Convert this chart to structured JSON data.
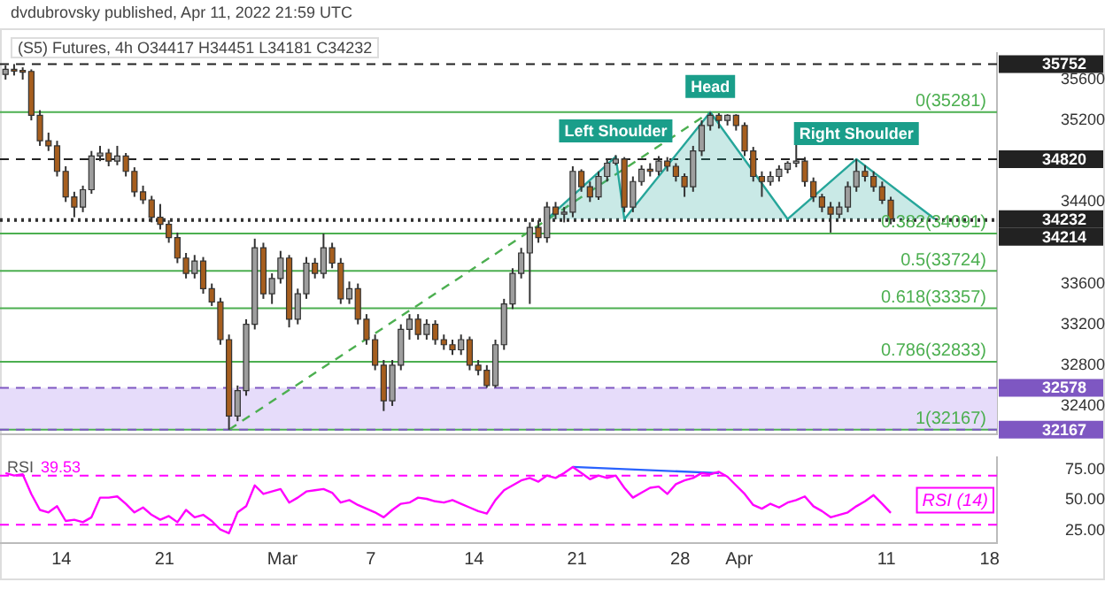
{
  "chart_data": [
    {
      "type": "candlestick",
      "title": "dvdubrovsky published, Apr 11, 2022 21:59 UTC",
      "subtitle": "(S5) Futures, 4h  O34417  H34451  L34181  C34232",
      "x": [
        "2022-02-10T05:00",
        "2022-02-10T19:00",
        "2022-02-11T09:00",
        "2022-02-11T23:00",
        "2022-02-12T13:00",
        "2022-02-13T03:00",
        "2022-02-13T17:00",
        "2022-02-14T07:00",
        "2022-02-14T21:00",
        "2022-02-15T11:00",
        "2022-02-16T01:00",
        "2022-02-16T15:00",
        "2022-02-17T05:00",
        "2022-02-17T19:00",
        "2022-02-18T09:00",
        "2022-02-18T23:00",
        "2022-02-19T13:00",
        "2022-02-20T03:00",
        "2022-02-20T17:00",
        "2022-02-21T07:00",
        "2022-02-21T21:00",
        "2022-02-22T11:00",
        "2022-02-23T01:00",
        "2022-02-23T15:00",
        "2022-02-24T05:00",
        "2022-02-24T19:00",
        "2022-02-25T09:00",
        "2022-02-25T23:00",
        "2022-02-26T13:00",
        "2022-02-27T03:00",
        "2022-02-27T17:00",
        "2022-02-28T07:00",
        "2022-02-28T21:00",
        "2022-03-01T11:00",
        "2022-03-02T01:00",
        "2022-03-02T15:00",
        "2022-03-03T05:00",
        "2022-03-03T19:00",
        "2022-03-04T09:00",
        "2022-03-04T23:00",
        "2022-03-05T13:00",
        "2022-03-06T03:00",
        "2022-03-06T17:00",
        "2022-03-07T07:00",
        "2022-03-07T21:00",
        "2022-03-08T11:00",
        "2022-03-09T01:00",
        "2022-03-09T15:00",
        "2022-03-10T05:00",
        "2022-03-10T19:00",
        "2022-03-11T09:00",
        "2022-03-11T23:00",
        "2022-03-12T13:00",
        "2022-03-13T03:00",
        "2022-03-13T17:00",
        "2022-03-14T07:00",
        "2022-03-14T21:00",
        "2022-03-15T11:00",
        "2022-03-16T01:00",
        "2022-03-16T15:00",
        "2022-03-17T05:00",
        "2022-03-17T19:00",
        "2022-03-18T09:00",
        "2022-03-18T23:00",
        "2022-03-19T13:00",
        "2022-03-20T03:00",
        "2022-03-20T17:00",
        "2022-03-21T07:00",
        "2022-03-21T21:00",
        "2022-03-22T11:00",
        "2022-03-23T01:00",
        "2022-03-23T15:00",
        "2022-03-24T05:00",
        "2022-03-24T19:00",
        "2022-03-25T09:00",
        "2022-03-25T23:00",
        "2022-03-26T13:00",
        "2022-03-27T03:00",
        "2022-03-27T17:00",
        "2022-03-28T07:00",
        "2022-03-28T21:00",
        "2022-03-29T11:00",
        "2022-03-30T01:00",
        "2022-03-30T15:00",
        "2022-03-31T05:00",
        "2022-03-31T19:00",
        "2022-04-01T09:00",
        "2022-04-01T23:00",
        "2022-04-02T13:00",
        "2022-04-03T03:00",
        "2022-04-03T17:00",
        "2022-04-04T07:00",
        "2022-04-04T21:00",
        "2022-04-05T11:00",
        "2022-04-06T01:00",
        "2022-04-06T15:00",
        "2022-04-07T05:00",
        "2022-04-07T19:00",
        "2022-04-08T09:00",
        "2022-04-08T23:00",
        "2022-04-09T13:00",
        "2022-04-10T03:00",
        "2022-04-10T17:00",
        "2022-04-11T07:00"
      ],
      "ohlc": [
        [
          35650,
          35740,
          35600,
          35700
        ],
        [
          35700,
          35752,
          35640,
          35690
        ],
        [
          35690,
          35720,
          35600,
          35680
        ],
        [
          35680,
          35700,
          35200,
          35250
        ],
        [
          35250,
          35300,
          34950,
          35000
        ],
        [
          35000,
          35080,
          34900,
          34950
        ],
        [
          34950,
          35000,
          34650,
          34700
        ],
        [
          34700,
          34750,
          34400,
          34450
        ],
        [
          34450,
          34500,
          34250,
          34350
        ],
        [
          34350,
          34560,
          34300,
          34520
        ],
        [
          34520,
          34900,
          34480,
          34850
        ],
        [
          34850,
          34950,
          34800,
          34880
        ],
        [
          34880,
          34920,
          34750,
          34800
        ],
        [
          34800,
          34950,
          34760,
          34850
        ],
        [
          34850,
          34880,
          34650,
          34700
        ],
        [
          34700,
          34740,
          34450,
          34500
        ],
        [
          34500,
          34560,
          34380,
          34420
        ],
        [
          34420,
          34460,
          34200,
          34250
        ],
        [
          34250,
          34380,
          34130,
          34180
        ],
        [
          34180,
          34220,
          34000,
          34050
        ],
        [
          34050,
          34100,
          33800,
          33850
        ],
        [
          33850,
          33900,
          33650,
          33700
        ],
        [
          33700,
          33880,
          33650,
          33820
        ],
        [
          33820,
          33860,
          33500,
          33550
        ],
        [
          33550,
          33600,
          33380,
          33420
        ],
        [
          33420,
          33460,
          33000,
          33050
        ],
        [
          33050,
          33100,
          32167,
          32300
        ],
        [
          32300,
          32600,
          32250,
          32550
        ],
        [
          32550,
          33250,
          32500,
          33200
        ],
        [
          33200,
          34040,
          33150,
          33950
        ],
        [
          33950,
          34000,
          33450,
          33500
        ],
        [
          33500,
          33700,
          33400,
          33650
        ],
        [
          33650,
          33920,
          33600,
          33850
        ],
        [
          33850,
          33880,
          33170,
          33250
        ],
        [
          33250,
          33550,
          33200,
          33500
        ],
        [
          33500,
          33860,
          33450,
          33800
        ],
        [
          33800,
          33850,
          33650,
          33700
        ],
        [
          33700,
          34090,
          33650,
          33950
        ],
        [
          33950,
          34000,
          33750,
          33800
        ],
        [
          33800,
          33850,
          33400,
          33450
        ],
        [
          33450,
          33620,
          33400,
          33550
        ],
        [
          33550,
          33600,
          33200,
          33250
        ],
        [
          33250,
          33300,
          33000,
          33050
        ],
        [
          33050,
          33100,
          32750,
          32800
        ],
        [
          32800,
          32850,
          32350,
          32450
        ],
        [
          32450,
          32850,
          32400,
          32800
        ],
        [
          32800,
          33200,
          32750,
          33150
        ],
        [
          33150,
          33300,
          33050,
          33250
        ],
        [
          33250,
          33300,
          33050,
          33100
        ],
        [
          33100,
          33250,
          33050,
          33200
        ],
        [
          33200,
          33240,
          33000,
          33050
        ],
        [
          33050,
          33100,
          32950,
          33000
        ],
        [
          33000,
          33050,
          32900,
          32950
        ],
        [
          32950,
          33100,
          32900,
          33050
        ],
        [
          33050,
          33080,
          32750,
          32800
        ],
        [
          32800,
          32850,
          32700,
          32750
        ],
        [
          32750,
          32800,
          32578,
          32600
        ],
        [
          32600,
          33050,
          32580,
          33000
        ],
        [
          33000,
          33450,
          32950,
          33400
        ],
        [
          33400,
          33750,
          33350,
          33700
        ],
        [
          33700,
          33950,
          33650,
          33900
        ],
        [
          33900,
          34200,
          33400,
          34150
        ],
        [
          34150,
          34220,
          34000,
          34050
        ],
        [
          34050,
          34400,
          34000,
          34350
        ],
        [
          34350,
          34400,
          34230,
          34280
        ],
        [
          34280,
          34350,
          34200,
          34300
        ],
        [
          34300,
          34750,
          34250,
          34700
        ],
        [
          34700,
          34720,
          34500,
          34550
        ],
        [
          34550,
          34600,
          34400,
          34450
        ],
        [
          34450,
          34700,
          34420,
          34650
        ],
        [
          34650,
          34820,
          34600,
          34780
        ],
        [
          34780,
          34860,
          34760,
          34820
        ],
        [
          34820,
          34840,
          34300,
          34350
        ],
        [
          34350,
          34650,
          34300,
          34600
        ],
        [
          34600,
          34760,
          34560,
          34720
        ],
        [
          34720,
          34780,
          34650,
          34700
        ],
        [
          34700,
          34850,
          34660,
          34800
        ],
        [
          34800,
          34840,
          34700,
          34750
        ],
        [
          34750,
          34780,
          34600,
          34650
        ],
        [
          34650,
          34680,
          34450,
          34550
        ],
        [
          34550,
          34950,
          34500,
          34900
        ],
        [
          34900,
          35200,
          34850,
          35150
        ],
        [
          35150,
          35281,
          35100,
          35250
        ],
        [
          35250,
          35270,
          35120,
          35200
        ],
        [
          35200,
          35260,
          35150,
          35250
        ],
        [
          35250,
          35260,
          35100,
          35150
        ],
        [
          35150,
          35180,
          34850,
          34900
        ],
        [
          34900,
          34940,
          34600,
          34650
        ],
        [
          34650,
          34700,
          34450,
          34600
        ],
        [
          34600,
          34700,
          34560,
          34650
        ],
        [
          34650,
          34760,
          34600,
          34720
        ],
        [
          34720,
          34800,
          34680,
          34780
        ],
        [
          34780,
          34980,
          34740,
          34800
        ],
        [
          34800,
          34840,
          34550,
          34600
        ],
        [
          34600,
          34640,
          34400,
          34450
        ],
        [
          34450,
          34480,
          34300,
          34350
        ],
        [
          34350,
          34400,
          34100,
          34280
        ],
        [
          34280,
          34400,
          34240,
          34350
        ],
        [
          34350,
          34600,
          34300,
          34550
        ],
        [
          34550,
          34820,
          34500,
          34700
        ],
        [
          34700,
          34760,
          34600,
          34650
        ],
        [
          34650,
          34700,
          34500,
          34550
        ],
        [
          34550,
          34600,
          34380,
          34417
        ],
        [
          34417,
          34451,
          34181,
          34232
        ]
      ],
      "colors": [
        "#9e9e9e",
        "#a65e1e",
        "#a65e1e",
        "#a65e1e",
        "#a65e1e",
        "#a65e1e",
        "#a65e1e",
        "#a65e1e",
        "#a65e1e",
        "#9e9e9e",
        "#9e9e9e",
        "#9e9e9e",
        "#a65e1e",
        "#9e9e9e",
        "#a65e1e",
        "#a65e1e",
        "#a65e1e",
        "#a65e1e",
        "#a65e1e",
        "#a65e1e",
        "#a65e1e",
        "#a65e1e",
        "#9e9e9e",
        "#a65e1e",
        "#a65e1e",
        "#a65e1e",
        "#a65e1e",
        "#9e9e9e",
        "#9e9e9e",
        "#9e9e9e",
        "#a65e1e",
        "#9e9e9e",
        "#9e9e9e",
        "#a65e1e",
        "#9e9e9e",
        "#9e9e9e",
        "#a65e1e",
        "#9e9e9e",
        "#a65e1e",
        "#a65e1e",
        "#9e9e9e",
        "#a65e1e",
        "#a65e1e",
        "#a65e1e",
        "#a65e1e",
        "#9e9e9e",
        "#9e9e9e",
        "#9e9e9e",
        "#a65e1e",
        "#9e9e9e",
        "#a65e1e",
        "#a65e1e",
        "#a65e1e",
        "#9e9e9e",
        "#a65e1e",
        "#a65e1e",
        "#a65e1e",
        "#9e9e9e",
        "#9e9e9e",
        "#9e9e9e",
        "#9e9e9e",
        "#9e9e9e",
        "#a65e1e",
        "#9e9e9e",
        "#a65e1e",
        "#9e9e9e",
        "#9e9e9e",
        "#a65e1e",
        "#a65e1e",
        "#9e9e9e",
        "#9e9e9e",
        "#9e9e9e",
        "#a65e1e",
        "#9e9e9e",
        "#9e9e9e",
        "#a65e1e",
        "#9e9e9e",
        "#a65e1e",
        "#a65e1e",
        "#a65e1e",
        "#9e9e9e",
        "#9e9e9e",
        "#9e9e9e",
        "#a65e1e",
        "#9e9e9e",
        "#a65e1e",
        "#a65e1e",
        "#a65e1e",
        "#a65e1e",
        "#9e9e9e",
        "#9e9e9e",
        "#9e9e9e",
        "#9e9e9e",
        "#a65e1e",
        "#a65e1e",
        "#a65e1e",
        "#a65e1e",
        "#9e9e9e",
        "#9e9e9e",
        "#9e9e9e",
        "#a65e1e",
        "#a65e1e",
        "#a65e1e",
        "#a65e1e"
      ],
      "series": [
        {
          "type": "area",
          "color": "#26a69a",
          "x": [
            "2022-03-18T23:00",
            "2022-03-23T15:00",
            "2022-03-24T05:00",
            "2022-03-30T01:00",
            "2022-04-04T07:00",
            "2022-04-08T23:00",
            "2022-04-14T07:00"
          ],
          "values": [
            34232,
            34845,
            34232,
            35281,
            34232,
            34820,
            34232
          ]
        },
        {
          "type": "line",
          "color": "#4caf50",
          "line_style": "dashed",
          "x": [
            "2022-02-25T09:00",
            "2022-03-30T01:00"
          ],
          "values": [
            32167,
            35281
          ]
        }
      ],
      "xlim": [
        "2022-02-09T20:00",
        "2022-04-18T12:00"
      ],
      "ylim": [
        32120,
        35860
      ],
      "yticks": [
        32400,
        32800,
        33200,
        33600,
        34400,
        35200,
        35600
      ],
      "tick_labels": "y",
      "bands": [
        {
          "axis": "y",
          "from": 32167,
          "to": 32578,
          "color": "#e6dcfa"
        }
      ],
      "ref_lines": [
        {
          "axis": "y",
          "value": 35752,
          "label": "35752",
          "color": "#222222",
          "line_style": "dashed"
        },
        {
          "axis": "y",
          "value": 35281,
          "label": "0(35281)",
          "color": "#4caf50",
          "line_style": "solid"
        },
        {
          "axis": "y",
          "value": 34820,
          "label": "34820",
          "color": "#222222",
          "line_style": "dashed"
        },
        {
          "axis": "y",
          "value": 34232,
          "label": "34232",
          "color": "#222222",
          "line_style": "dotted"
        },
        {
          "axis": "y",
          "value": 34214,
          "label": "34214",
          "color": "#222222",
          "line_style": "dotted"
        },
        {
          "axis": "y",
          "value": 34091,
          "label": "0.382(34091)",
          "color": "#4caf50",
          "line_style": "solid"
        },
        {
          "axis": "y",
          "value": 33724,
          "label": "0.5(33724)",
          "color": "#4caf50",
          "line_style": "solid"
        },
        {
          "axis": "y",
          "value": 33357,
          "label": "0.618(33357)",
          "color": "#4caf50",
          "line_style": "solid"
        },
        {
          "axis": "y",
          "value": 32833,
          "label": "0.786(32833)",
          "color": "#4caf50",
          "line_style": "solid"
        },
        {
          "axis": "y",
          "value": 32578,
          "label": "32578",
          "color": "#7e57c2",
          "line_style": "dashed"
        },
        {
          "axis": "y",
          "value": 32167,
          "label": "1(32167)",
          "color": "#4caf50",
          "line_style": "solid"
        },
        {
          "axis": "y",
          "value": 32167,
          "label": "32167",
          "color": "#7e57c2",
          "line_style": "dashed"
        }
      ],
      "annotations": [
        {
          "text": "Left Shoulder",
          "x": "2022-03-23T15:00",
          "y": 34845
        },
        {
          "text": "Head",
          "x": "2022-03-30T01:00",
          "y": 35281
        },
        {
          "text": "Right Shoulder",
          "x": "2022-04-08T23:00",
          "y": 34820
        }
      ]
    },
    {
      "type": "line",
      "legend": "top left",
      "x": [
        "2022-02-10T05:00",
        "2022-02-10T19:00",
        "2022-02-11T09:00",
        "2022-02-11T23:00",
        "2022-02-12T13:00",
        "2022-02-13T03:00",
        "2022-02-13T17:00",
        "2022-02-14T07:00",
        "2022-02-14T21:00",
        "2022-02-15T11:00",
        "2022-02-16T01:00",
        "2022-02-16T15:00",
        "2022-02-17T05:00",
        "2022-02-17T19:00",
        "2022-02-18T09:00",
        "2022-02-18T23:00",
        "2022-02-19T13:00",
        "2022-02-20T03:00",
        "2022-02-20T17:00",
        "2022-02-21T07:00",
        "2022-02-21T21:00",
        "2022-02-22T11:00",
        "2022-02-23T01:00",
        "2022-02-23T15:00",
        "2022-02-24T05:00",
        "2022-02-24T19:00",
        "2022-02-25T09:00",
        "2022-02-25T23:00",
        "2022-02-26T13:00",
        "2022-02-27T03:00",
        "2022-02-27T17:00",
        "2022-02-28T07:00",
        "2022-02-28T21:00",
        "2022-03-01T11:00",
        "2022-03-02T01:00",
        "2022-03-02T15:00",
        "2022-03-03T05:00",
        "2022-03-03T19:00",
        "2022-03-04T09:00",
        "2022-03-04T23:00",
        "2022-03-05T13:00",
        "2022-03-06T03:00",
        "2022-03-06T17:00",
        "2022-03-07T07:00",
        "2022-03-07T21:00",
        "2022-03-08T11:00",
        "2022-03-09T01:00",
        "2022-03-09T15:00",
        "2022-03-10T05:00",
        "2022-03-10T19:00",
        "2022-03-11T09:00",
        "2022-03-11T23:00",
        "2022-03-12T13:00",
        "2022-03-13T03:00",
        "2022-03-13T17:00",
        "2022-03-14T07:00",
        "2022-03-14T21:00",
        "2022-03-15T11:00",
        "2022-03-16T01:00",
        "2022-03-16T15:00",
        "2022-03-17T05:00",
        "2022-03-17T19:00",
        "2022-03-18T09:00",
        "2022-03-18T23:00",
        "2022-03-19T13:00",
        "2022-03-20T03:00",
        "2022-03-20T17:00",
        "2022-03-21T07:00",
        "2022-03-21T21:00",
        "2022-03-22T11:00",
        "2022-03-23T01:00",
        "2022-03-23T15:00",
        "2022-03-24T05:00",
        "2022-03-24T19:00",
        "2022-03-25T09:00",
        "2022-03-25T23:00",
        "2022-03-26T13:00",
        "2022-03-27T03:00",
        "2022-03-27T17:00",
        "2022-03-28T07:00",
        "2022-03-28T21:00",
        "2022-03-29T11:00",
        "2022-03-30T01:00",
        "2022-03-30T15:00",
        "2022-03-31T05:00",
        "2022-03-31T19:00",
        "2022-04-01T09:00",
        "2022-04-01T23:00",
        "2022-04-02T13:00",
        "2022-04-03T03:00",
        "2022-04-03T17:00",
        "2022-04-04T07:00",
        "2022-04-04T21:00",
        "2022-04-05T11:00",
        "2022-04-06T01:00",
        "2022-04-06T15:00",
        "2022-04-07T05:00",
        "2022-04-07T19:00",
        "2022-04-08T09:00",
        "2022-04-08T23:00",
        "2022-04-09T13:00",
        "2022-04-10T03:00",
        "2022-04-10T17:00",
        "2022-04-11T07:00"
      ],
      "series": [
        {
          "name": "RSI",
          "color": "#ff00ff",
          "values": [
            72,
            70,
            71,
            55,
            42,
            40,
            45,
            33,
            34,
            32,
            36,
            52,
            52,
            53,
            47,
            40,
            44,
            38,
            34,
            37,
            32,
            42,
            36,
            38,
            33,
            26,
            23,
            40,
            45,
            62,
            55,
            57,
            59,
            48,
            52,
            57,
            58,
            59,
            56,
            48,
            50,
            46,
            43,
            40,
            36,
            42,
            47,
            48,
            52,
            51,
            49,
            48,
            50,
            47,
            44,
            41,
            39,
            50,
            58,
            62,
            66,
            68,
            65,
            70,
            68,
            72,
            77,
            72,
            67,
            70,
            68,
            70,
            60,
            52,
            56,
            60,
            61,
            55,
            63,
            66,
            68,
            72,
            71,
            73,
            69,
            62,
            55,
            46,
            43,
            47,
            44,
            48,
            50,
            53,
            45,
            41,
            36,
            38,
            40,
            45,
            49,
            54,
            47,
            39.53
          ]
        },
        {
          "type": "line",
          "color": "#2962ff",
          "x": [
            "2022-03-20T17:00",
            "2022-03-30T15:00"
          ],
          "values": [
            77,
            72
          ]
        }
      ],
      "xlim": [
        "2022-02-09T20:00",
        "2022-04-18T12:00"
      ],
      "xticks": [
        {
          "value": "2022-02-14",
          "label": "14"
        },
        {
          "value": "2022-02-21",
          "label": "21"
        },
        {
          "value": "2022-03-01",
          "label": "Mar"
        },
        {
          "value": "2022-03-07",
          "label": "7"
        },
        {
          "value": "2022-03-14",
          "label": "14"
        },
        {
          "value": "2022-03-21",
          "label": "21"
        },
        {
          "value": "2022-03-28",
          "label": "28"
        },
        {
          "value": "2022-04-01",
          "label": "Apr"
        },
        {
          "value": "2022-04-11",
          "label": "11"
        },
        {
          "value": "2022-04-18",
          "label": "18"
        }
      ],
      "ylim": [
        15,
        85
      ],
      "yticks": [
        {
          "value": 25,
          "label": "25.00"
        },
        {
          "value": 50,
          "label": "50.00"
        },
        {
          "value": 75,
          "label": "75.00"
        }
      ],
      "ref_lines": [
        {
          "axis": "y",
          "value": 70,
          "color": "#ff00ff",
          "line_style": "dashed"
        },
        {
          "axis": "y",
          "value": 30,
          "color": "#ff00ff",
          "line_style": "dashed"
        }
      ],
      "annotations": [
        "39.53",
        "RSI (14)"
      ]
    }
  ]
}
